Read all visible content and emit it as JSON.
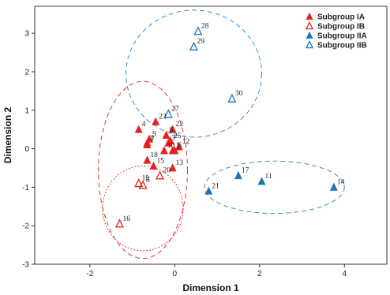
{
  "chart_data": {
    "type": "scatter",
    "xlabel": "Dimension 1",
    "ylabel": "Dimension 2",
    "xlim": [
      -3.3,
      5.0
    ],
    "ylim": [
      -3.0,
      3.7
    ],
    "xticks": [
      -2,
      0,
      2,
      4
    ],
    "yticks": [
      -3,
      -2,
      -1,
      0,
      1,
      2,
      3
    ],
    "grid": false,
    "legend_position": "top-right",
    "colors": {
      "red": "#e8211f",
      "blue": "#1b74bd",
      "red_dash": "#e0352f",
      "blue_dash": "#3a8ccc"
    },
    "series": [
      {
        "name": "Subgroup IA",
        "marker": "filled-triangle",
        "color": "#e8211f",
        "points": [
          {
            "label": "1",
            "x": -0.05,
            "y": -0.05
          },
          {
            "label": "2",
            "x": -0.65,
            "y": 0.15
          },
          {
            "label": "3",
            "x": -0.15,
            "y": 0.15
          },
          {
            "label": "4",
            "x": -0.85,
            "y": 0.5
          },
          {
            "label": "5",
            "x": 0.0,
            "y": -0.05
          },
          {
            "label": "7",
            "x": -0.65,
            "y": 0.1
          },
          {
            "label": "8",
            "x": -0.2,
            "y": 0.35
          },
          {
            "label": "9",
            "x": -0.6,
            "y": 0.25
          },
          {
            "label": "10",
            "x": -0.25,
            "y": -0.05
          },
          {
            "label": "12",
            "x": 0.1,
            "y": 0.05
          },
          {
            "label": "13",
            "x": -0.05,
            "y": -0.5
          },
          {
            "label": "15",
            "x": -0.5,
            "y": -0.45
          },
          {
            "label": "18",
            "x": -0.65,
            "y": -0.3
          },
          {
            "label": "22",
            "x": -0.05,
            "y": 0.5
          },
          {
            "label": "23",
            "x": -0.45,
            "y": 0.7
          },
          {
            "label": "25",
            "x": -0.1,
            "y": 0.2
          }
        ]
      },
      {
        "name": "Subgroup IB",
        "marker": "hollow-triangle",
        "color": "#e8211f",
        "points": [
          {
            "label": "6",
            "x": -0.75,
            "y": -0.95
          },
          {
            "label": "16",
            "x": -1.3,
            "y": -1.95
          },
          {
            "label": "19",
            "x": -0.85,
            "y": -0.9
          },
          {
            "label": "20",
            "x": -0.35,
            "y": -0.7
          }
        ]
      },
      {
        "name": "Subgroup IIA",
        "marker": "filled-triangle",
        "color": "#1b74bd",
        "points": [
          {
            "label": "11",
            "x": 2.05,
            "y": -0.85
          },
          {
            "label": "14",
            "x": 3.75,
            "y": -1.0
          },
          {
            "label": "17",
            "x": 1.5,
            "y": -0.7
          },
          {
            "label": "21",
            "x": 0.8,
            "y": -1.1
          }
        ]
      },
      {
        "name": "Subgroup IIB",
        "marker": "hollow-triangle",
        "color": "#1b74bd",
        "points": [
          {
            "label": "27",
            "x": -0.15,
            "y": 0.9
          },
          {
            "label": "28",
            "x": 0.55,
            "y": 3.05
          },
          {
            "label": "29",
            "x": 0.45,
            "y": 2.65
          },
          {
            "label": "30",
            "x": 1.35,
            "y": 1.3
          }
        ]
      }
    ],
    "ellipses": [
      {
        "color": "#e0352f",
        "cx": -0.75,
        "cy": -0.55,
        "rx": 1.05,
        "ry": 2.3,
        "dash": "6,4"
      },
      {
        "color": "#e0352f",
        "cx": -0.75,
        "cy": -1.55,
        "rx": 0.95,
        "ry": 1.1,
        "dash": "2,2"
      },
      {
        "color": "#3a8ccc",
        "cx": 0.45,
        "cy": 1.95,
        "rx": 1.6,
        "ry": 1.65,
        "dash": "6,4"
      },
      {
        "color": "#3a8ccc",
        "cx": 2.35,
        "cy": -1.0,
        "rx": 1.65,
        "ry": 0.68,
        "dash": "6,4"
      }
    ]
  }
}
